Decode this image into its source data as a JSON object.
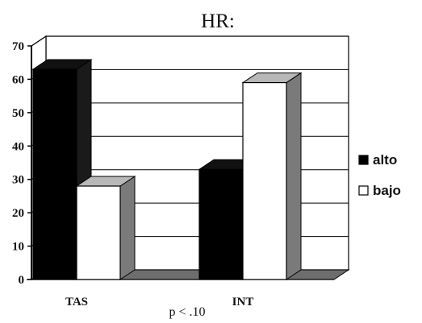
{
  "chart_data": {
    "type": "bar",
    "title": "HR:",
    "categories": [
      "TAS",
      "INT"
    ],
    "series": [
      {
        "name": "alto",
        "values": [
          63,
          33
        ],
        "color": "#000000"
      },
      {
        "name": "bajo",
        "values": [
          28,
          59
        ],
        "color": "#ffffff"
      }
    ],
    "ylim": [
      0,
      70
    ],
    "yticks": [
      "0",
      "10",
      "20",
      "30",
      "40",
      "50",
      "60",
      "70"
    ],
    "grid": true,
    "three_d": true,
    "legend_position": "right",
    "annotation": "p < .10"
  }
}
